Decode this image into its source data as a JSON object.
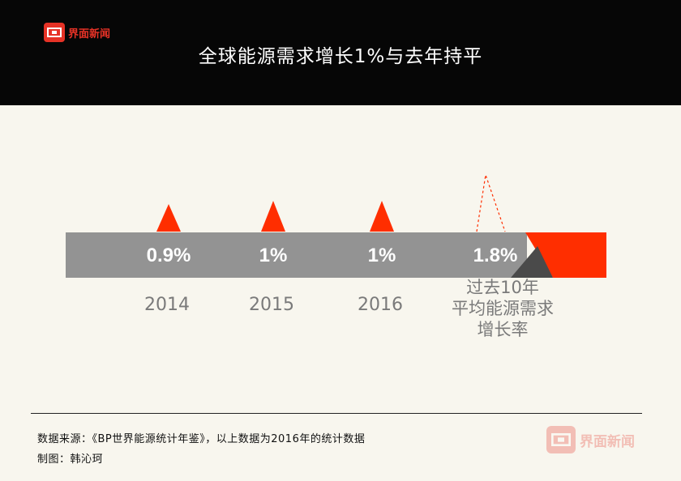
{
  "brand": {
    "name": "界面新闻"
  },
  "title": "全球能源需求增长1%与去年持平",
  "chart_data": {
    "type": "bar",
    "categories": [
      "2014",
      "2015",
      "2016",
      "过去10年\n平均能源需求\n增长率"
    ],
    "values": [
      0.9,
      1,
      1,
      1.8
    ],
    "value_labels": [
      "0.9%",
      "1%",
      "1%",
      "1.8%"
    ],
    "colors": {
      "bar": "#939393",
      "accent": "#ff2e00",
      "dark": "#4a4a4a",
      "label": "#7a7a7a"
    }
  },
  "footer": {
    "source": "数据来源：《BP世界能源统计年鉴》，以上数据为2016年的统计数据",
    "credit": "制图：韩沁珂"
  }
}
